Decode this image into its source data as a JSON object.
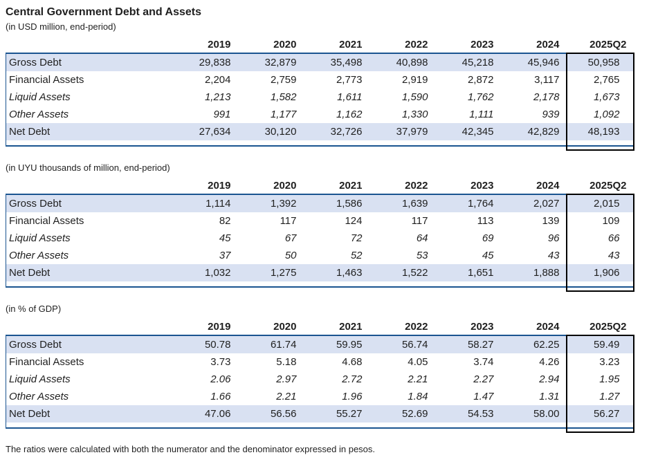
{
  "title": "Central Government Debt and Assets",
  "footnote": "The ratios were calculated with both the numerator and the denominator expressed in pesos.",
  "columns": [
    "2019",
    "2020",
    "2021",
    "2022",
    "2023",
    "2024",
    "2025Q2"
  ],
  "colors": {
    "row_shade": "#d9e1f2",
    "border_navy": "#1a5490",
    "lastcol_box": "#000000",
    "text": "#1f1f1f"
  },
  "tables": [
    {
      "unit": "(in USD million, end-period)",
      "rows": [
        {
          "label": "Gross Debt",
          "values": [
            "29,838",
            "32,879",
            "35,498",
            "40,898",
            "45,218",
            "45,946",
            "50,958"
          ]
        },
        {
          "label": "Financial Assets",
          "values": [
            "2,204",
            "2,759",
            "2,773",
            "2,919",
            "2,872",
            "3,117",
            "2,765"
          ]
        },
        {
          "label": "Liquid Assets",
          "values": [
            "1,213",
            "1,582",
            "1,611",
            "1,590",
            "1,762",
            "2,178",
            "1,673"
          ]
        },
        {
          "label": "Other Assets",
          "values": [
            "991",
            "1,177",
            "1,162",
            "1,330",
            "1,111",
            "939",
            "1,092"
          ]
        },
        {
          "label": "Net Debt",
          "values": [
            "27,634",
            "30,120",
            "32,726",
            "37,979",
            "42,345",
            "42,829",
            "48,193"
          ]
        }
      ]
    },
    {
      "unit": "(in UYU thousands of million, end-period)",
      "rows": [
        {
          "label": "Gross Debt",
          "values": [
            "1,114",
            "1,392",
            "1,586",
            "1,639",
            "1,764",
            "2,027",
            "2,015"
          ]
        },
        {
          "label": "Financial Assets",
          "values": [
            "82",
            "117",
            "124",
            "117",
            "113",
            "139",
            "109"
          ]
        },
        {
          "label": "Liquid Assets",
          "values": [
            "45",
            "67",
            "72",
            "64",
            "69",
            "96",
            "66"
          ]
        },
        {
          "label": "Other Assets",
          "values": [
            "37",
            "50",
            "52",
            "53",
            "45",
            "43",
            "43"
          ]
        },
        {
          "label": "Net Debt",
          "values": [
            "1,032",
            "1,275",
            "1,463",
            "1,522",
            "1,651",
            "1,888",
            "1,906"
          ]
        }
      ]
    },
    {
      "unit": "(in % of GDP)",
      "rows": [
        {
          "label": "Gross Debt",
          "values": [
            "50.78",
            "61.74",
            "59.95",
            "56.74",
            "58.27",
            "62.25",
            "59.49"
          ]
        },
        {
          "label": "Financial Assets",
          "values": [
            "3.73",
            "5.18",
            "4.68",
            "4.05",
            "3.74",
            "4.26",
            "3.23"
          ]
        },
        {
          "label": "Liquid Assets",
          "values": [
            "2.06",
            "2.97",
            "2.72",
            "2.21",
            "2.27",
            "2.94",
            "1.95"
          ]
        },
        {
          "label": "Other Assets",
          "values": [
            "1.66",
            "2.21",
            "1.96",
            "1.84",
            "1.47",
            "1.31",
            "1.27"
          ]
        },
        {
          "label": "Net Debt",
          "values": [
            "47.06",
            "56.56",
            "55.27",
            "52.69",
            "54.53",
            "58.00",
            "56.27"
          ]
        }
      ]
    }
  ]
}
